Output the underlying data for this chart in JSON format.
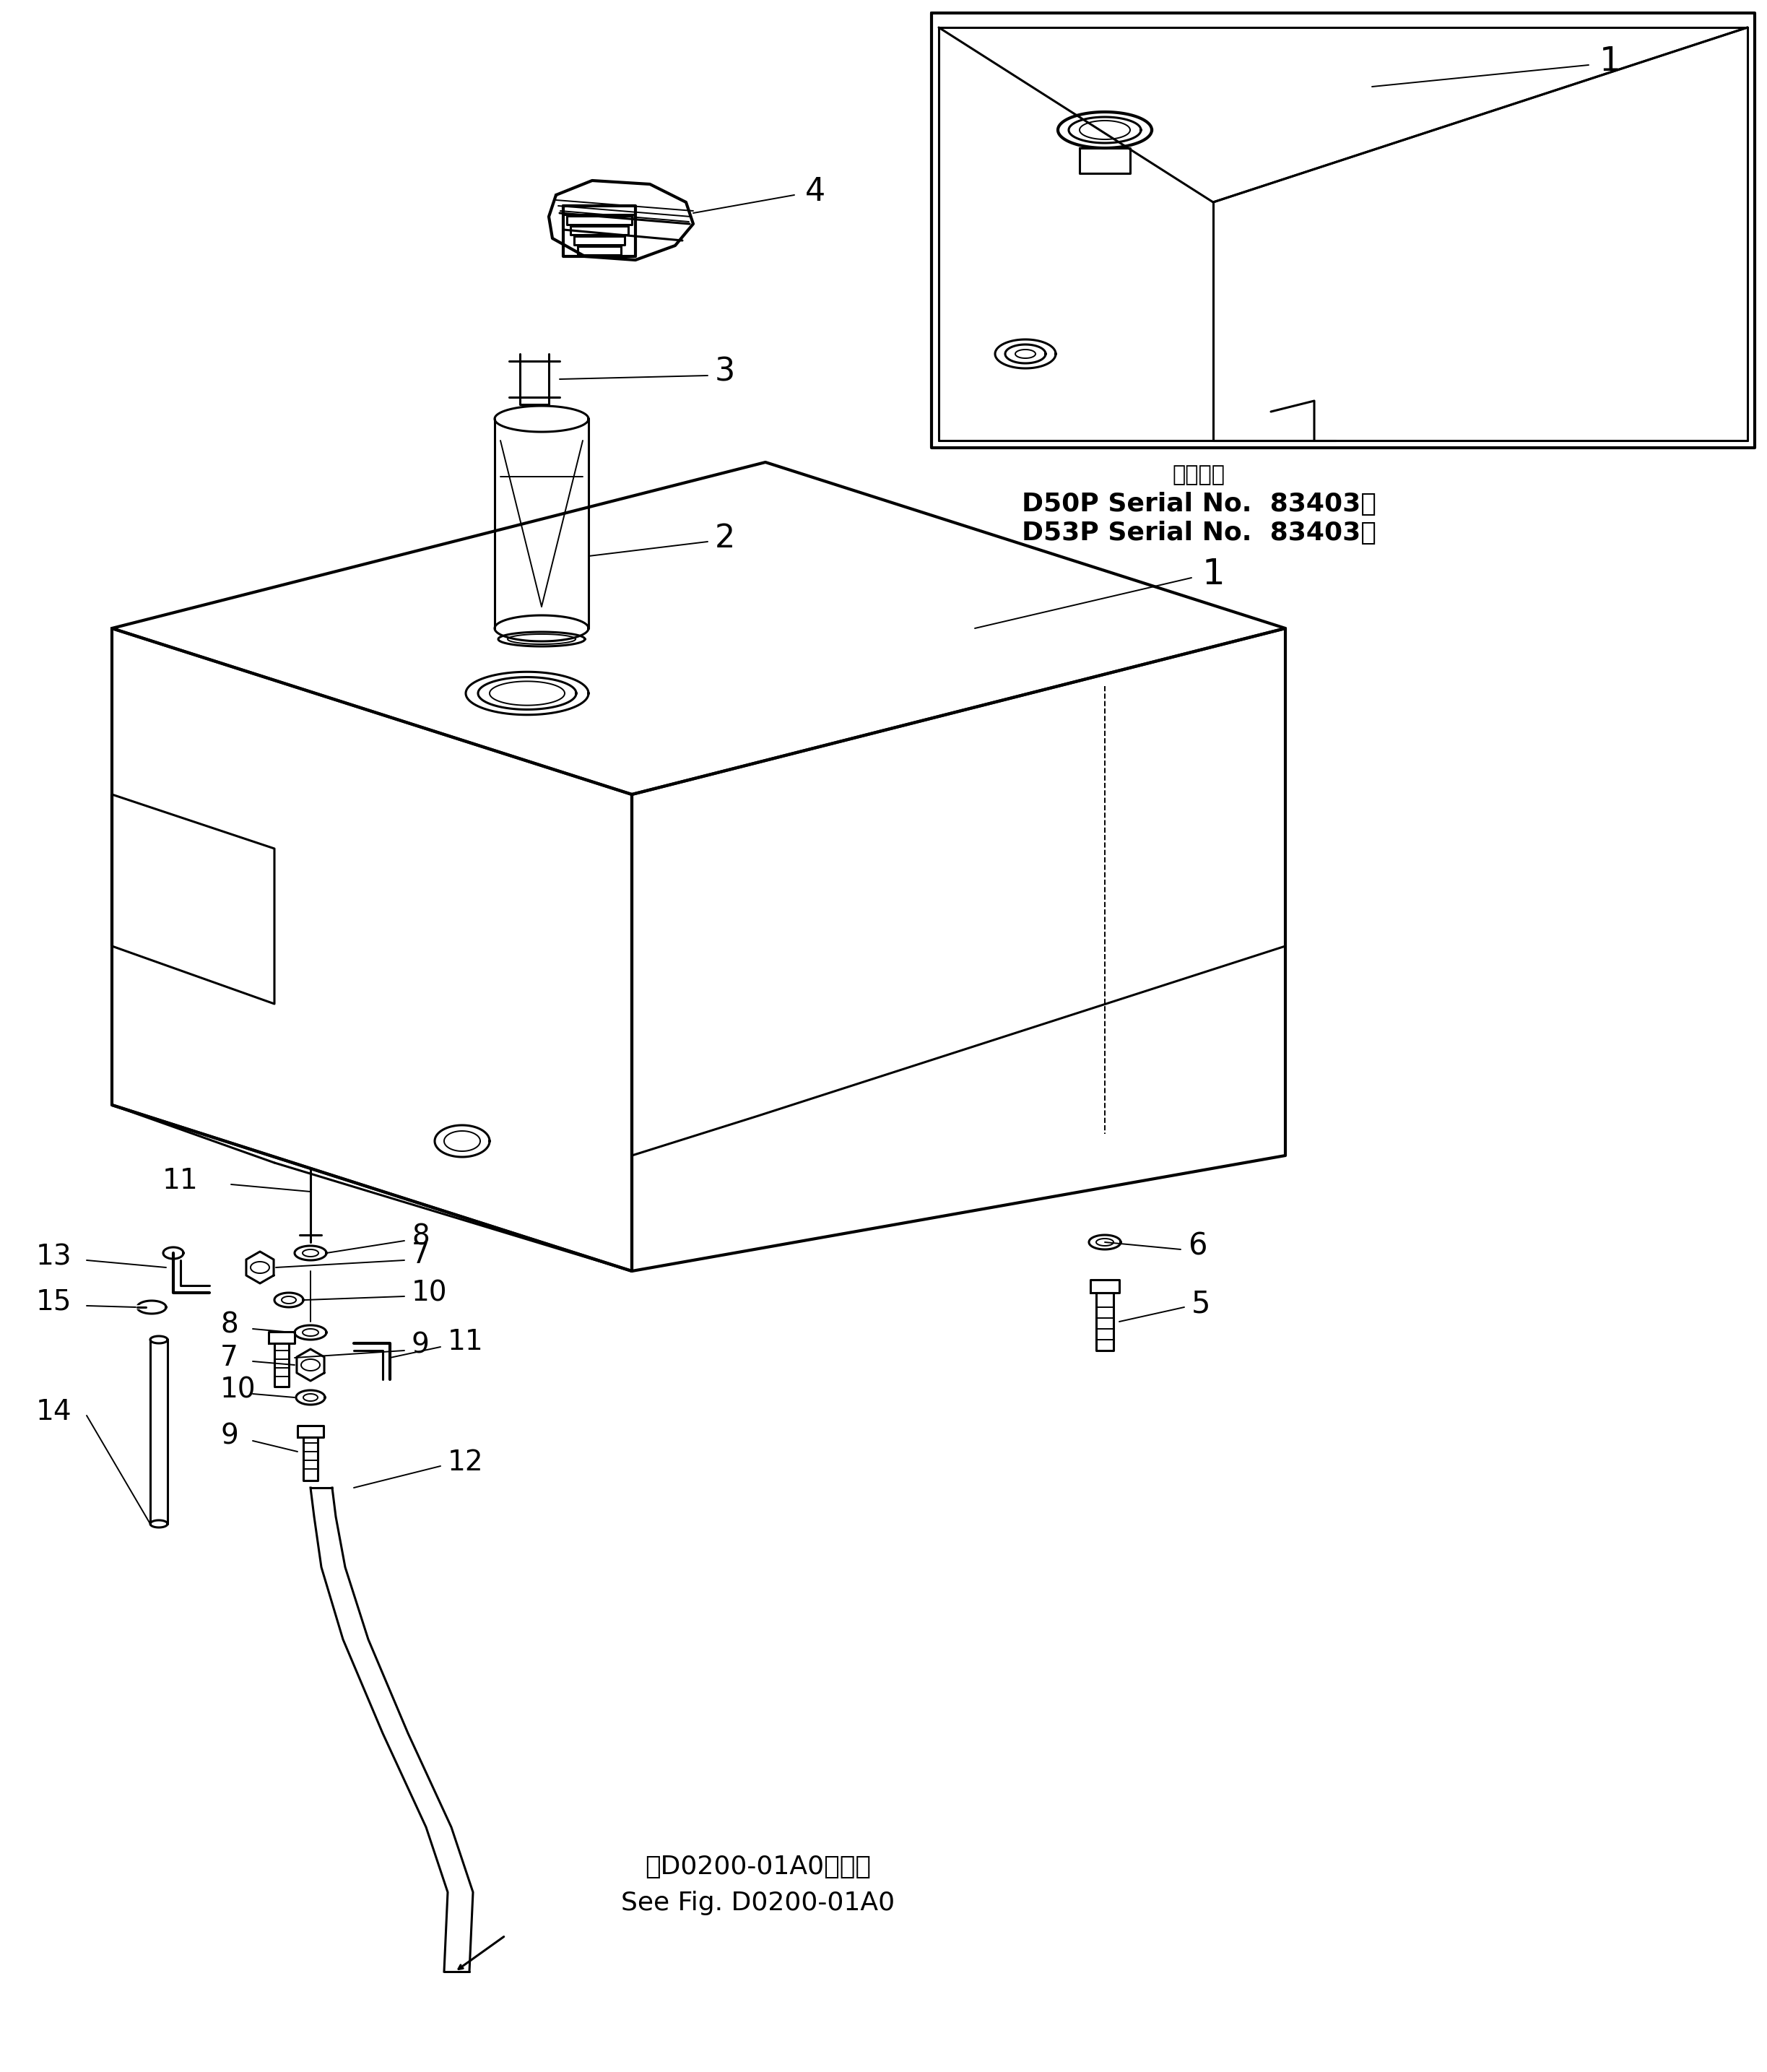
{
  "bg_color": "#ffffff",
  "line_color": "#000000",
  "serial_text_line1": "適用号機",
  "serial_text_line2": "D50P Serial No.  83403～",
  "serial_text_line3": "D53P Serial No.  83403～",
  "ref_text_line1": "第D0200-01A0図参照",
  "ref_text_line2": "See Fig. D0200-01A0"
}
